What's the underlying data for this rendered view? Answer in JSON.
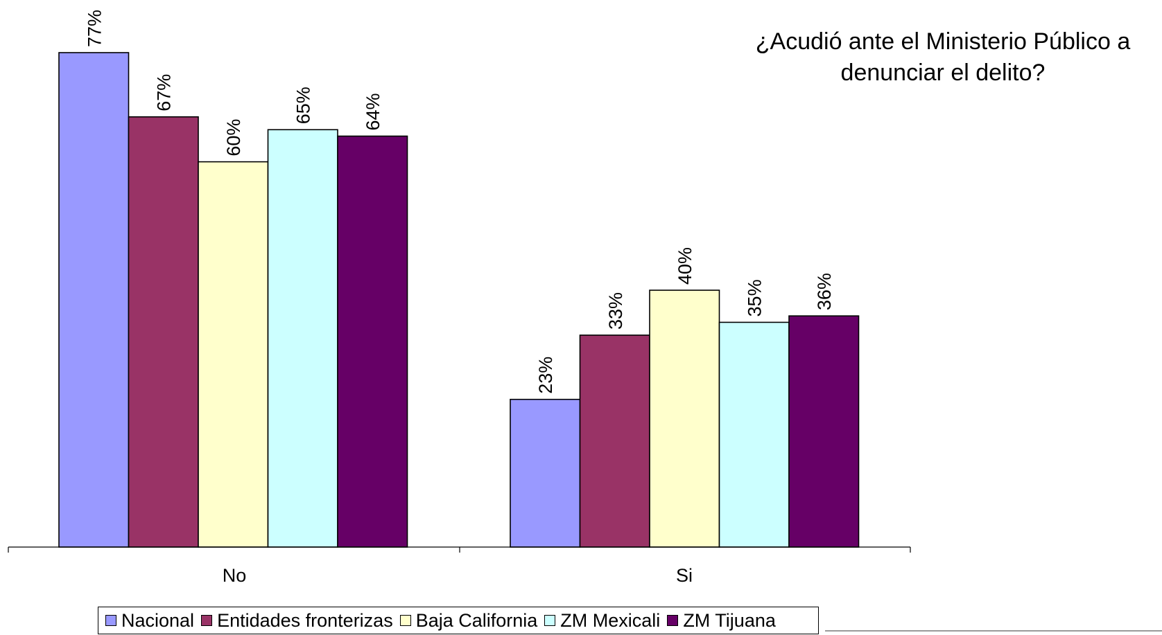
{
  "chart_data": {
    "type": "bar",
    "title_lines": [
      "¿Acudió ante el Ministerio Público a",
      "denunciar el delito?"
    ],
    "categories": [
      "No",
      "Si"
    ],
    "series": [
      {
        "name": "Nacional",
        "values": [
          77,
          23
        ],
        "color": "#9999FF"
      },
      {
        "name": "Entidades fronterizas",
        "values": [
          67,
          33
        ],
        "color": "#993366"
      },
      {
        "name": "Baja California",
        "values": [
          60,
          40
        ],
        "color": "#FFFFCC"
      },
      {
        "name": "ZM Mexicali",
        "values": [
          65,
          35
        ],
        "color": "#CCFFFF"
      },
      {
        "name": "ZM Tijuana",
        "values": [
          64,
          36
        ],
        "color": "#660066"
      }
    ],
    "value_suffix": "%",
    "ylim": [
      0,
      77
    ],
    "grid": false,
    "legend_position": "bottom"
  }
}
